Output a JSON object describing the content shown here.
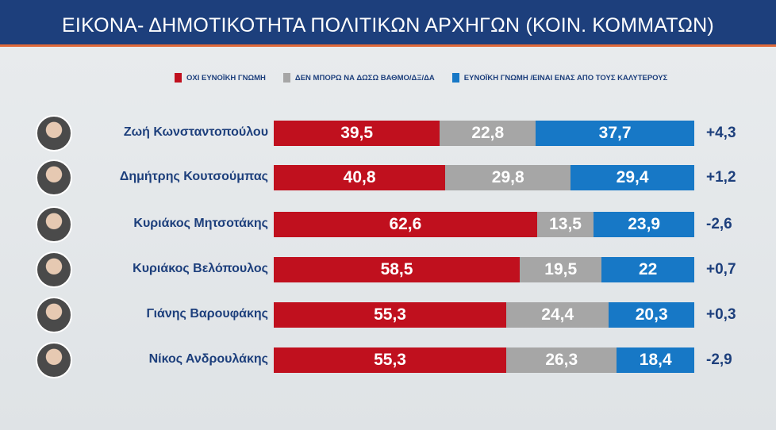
{
  "chart_data": {
    "type": "bar",
    "stacked": true,
    "orientation": "horizontal",
    "title": "ΕΙΚΟΝΑ- ΔΗΜΟΤΙΚΟΤΗΤΑ ΠΟΛΙΤΙΚΩΝ ΑΡΧΗΓΩΝ (ΚΟΙΝ. ΚΟΜΜΑΤΩΝ)",
    "legend_position": "top",
    "categories": [
      "Ζωή Κωνσταντοπούλου",
      "Δημήτρης Κουτσούμπας",
      "Κυριάκος Μητσοτάκης",
      "Κυριάκος Βελόπουλος",
      "Γιάνης Βαρουφάκης",
      "Νίκος Ανδρουλάκης"
    ],
    "series": [
      {
        "name": "ΟΧΙ ΕΥΝΟΪΚΗ ΓΝΩΜΗ",
        "color": "#c0101e",
        "values": [
          39.5,
          40.8,
          62.6,
          58.5,
          55.3,
          55.3
        ],
        "labels": [
          "39,5",
          "40,8",
          "62,6",
          "58,5",
          "55,3",
          "55,3"
        ]
      },
      {
        "name": "ΔΕΝ ΜΠΟΡΩ ΝΑ ΔΩΣΩ ΒΑΘΜΟ/ΔΞ/ΔΑ",
        "color": "#a6a6a6",
        "values": [
          22.8,
          29.8,
          13.5,
          19.5,
          24.4,
          26.3
        ],
        "labels": [
          "22,8",
          "29,8",
          "13,5",
          "19,5",
          "24,4",
          "26,3"
        ]
      },
      {
        "name": "ΕΥΝΟΪΚΗ ΓΝΩΜΗ /ΕΙΝΑΙ ΕΝΑΣ ΑΠΟ ΤΟΥΣ ΚΑΛΥΤΕΡΟΥΣ",
        "color": "#1778c6",
        "values": [
          37.7,
          29.4,
          23.9,
          22,
          20.3,
          18.4
        ],
        "labels": [
          "37,7",
          "29,4",
          "23,9",
          "22",
          "20,3",
          "18,4"
        ]
      }
    ],
    "differences": [
      "+4,3",
      "+1,2",
      "-2,6",
      "+0,7",
      "+0,3",
      "-2,9"
    ],
    "xlim": [
      0,
      100
    ]
  }
}
